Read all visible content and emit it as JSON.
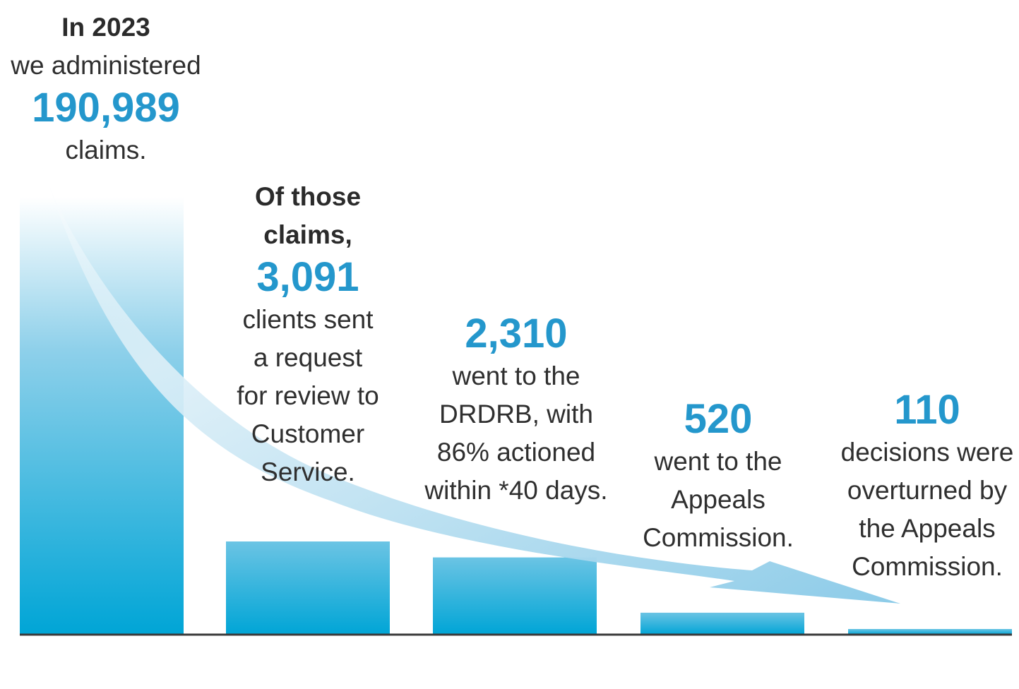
{
  "colors": {
    "accent": "#2497cc",
    "bar_top": "#6bc4e4",
    "bar_bottom": "#00a5d6",
    "baseline": "#3a3a3a",
    "text": "#2f2f2f"
  },
  "chart_data": {
    "type": "bar",
    "title": "In 2023 we administered 190,989 claims.",
    "categories": [
      "Administered claims",
      "Requests for review to Customer Service",
      "Went to the DRDRB",
      "Went to the Appeals Commission",
      "Decisions overturned by the Appeals Commission"
    ],
    "values": [
      190989,
      3091,
      2310,
      520,
      110
    ],
    "note": "Bars are illustrative (not to scale); a curved arrow flows from the first bar to the last."
  },
  "stages": [
    {
      "intro_bold": "In 2023",
      "intro": "we administered",
      "number": "190,989",
      "lines": [
        "claims."
      ]
    },
    {
      "intro_bold_lines": [
        "Of those",
        "claims,"
      ],
      "number": "3,091",
      "lines": [
        "clients sent",
        "a request",
        "for review to",
        "Customer",
        "Service."
      ]
    },
    {
      "number": "2,310",
      "lines": [
        "went to the",
        "DRDRB, with",
        "86% actioned",
        "within *40 days."
      ]
    },
    {
      "number": "520",
      "lines": [
        "went to the",
        "Appeals",
        "Commission."
      ]
    },
    {
      "number": "110",
      "lines": [
        "decisions were",
        "overturned by",
        "the Appeals",
        "Commission."
      ]
    }
  ]
}
